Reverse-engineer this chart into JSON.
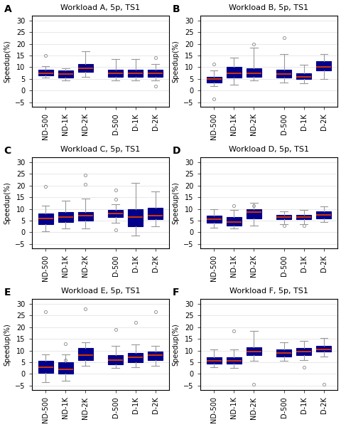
{
  "panels": [
    {
      "label": "A",
      "title": "Workload A, 5p, TS1",
      "boxes": [
        {
          "whislo": 5.5,
          "q1": 6.5,
          "med": 7.5,
          "q3": 9.0,
          "whishi": 10.5,
          "fliers": [
            15.0
          ]
        },
        {
          "whislo": 4.5,
          "q1": 5.5,
          "med": 7.0,
          "q3": 8.5,
          "whishi": 9.5,
          "fliers": []
        },
        {
          "whislo": 6.0,
          "q1": 8.0,
          "med": 9.5,
          "q3": 11.5,
          "whishi": 17.0,
          "fliers": []
        },
        {
          "whislo": 4.5,
          "q1": 6.0,
          "med": 7.5,
          "q3": 9.0,
          "whishi": 13.5,
          "fliers": []
        },
        {
          "whislo": 4.5,
          "q1": 6.0,
          "med": 7.5,
          "q3": 9.0,
          "whishi": 13.5,
          "fliers": []
        },
        {
          "whislo": 4.5,
          "q1": 6.0,
          "med": 7.5,
          "q3": 9.0,
          "whishi": 11.5,
          "fliers": [
            2.0,
            14.0
          ]
        }
      ]
    },
    {
      "label": "B",
      "title": "Workload B, 5p, TS1",
      "boxes": [
        {
          "whislo": 2.0,
          "q1": 3.5,
          "med": 5.0,
          "q3": 6.0,
          "whishi": 8.5,
          "fliers": [
            11.5,
            -3.5
          ]
        },
        {
          "whislo": 2.5,
          "q1": 5.5,
          "med": 7.5,
          "q3": 10.0,
          "whishi": 14.0,
          "fliers": []
        },
        {
          "whislo": 4.5,
          "q1": 6.0,
          "med": 7.5,
          "q3": 9.5,
          "whishi": 18.5,
          "fliers": [
            20.0
          ]
        },
        {
          "whislo": 3.5,
          "q1": 5.5,
          "med": 7.0,
          "q3": 9.0,
          "whishi": 15.5,
          "fliers": [
            22.5
          ]
        },
        {
          "whislo": 3.0,
          "q1": 5.0,
          "med": 6.0,
          "q3": 7.5,
          "whishi": 11.0,
          "fliers": []
        },
        {
          "whislo": 5.0,
          "q1": 8.5,
          "med": 10.0,
          "q3": 12.5,
          "whishi": 15.5,
          "fliers": []
        }
      ]
    },
    {
      "label": "C",
      "title": "Workload C, 5p, TS1",
      "boxes": [
        {
          "whislo": 0.5,
          "q1": 3.5,
          "med": 6.0,
          "q3": 8.0,
          "whishi": 11.5,
          "fliers": [
            19.5
          ]
        },
        {
          "whislo": 1.5,
          "q1": 4.5,
          "med": 6.5,
          "q3": 8.5,
          "whishi": 13.5,
          "fliers": []
        },
        {
          "whislo": 1.5,
          "q1": 5.0,
          "med": 7.0,
          "q3": 8.5,
          "whishi": 14.5,
          "fliers": [
            20.5,
            24.5
          ]
        },
        {
          "whislo": 4.0,
          "q1": 6.5,
          "med": 8.0,
          "q3": 9.5,
          "whishi": 12.0,
          "fliers": [
            14.0,
            18.0,
            1.0
          ]
        },
        {
          "whislo": -1.5,
          "q1": 2.5,
          "med": 6.5,
          "q3": 10.0,
          "whishi": 21.0,
          "fliers": []
        },
        {
          "whislo": 2.5,
          "q1": 5.5,
          "med": 7.0,
          "q3": 10.5,
          "whishi": 17.5,
          "fliers": []
        }
      ]
    },
    {
      "label": "D",
      "title": "Workload D, 5p, TS1",
      "boxes": [
        {
          "whislo": 2.0,
          "q1": 4.0,
          "med": 5.5,
          "q3": 7.0,
          "whishi": 10.0,
          "fliers": []
        },
        {
          "whislo": 1.5,
          "q1": 3.0,
          "med": 4.5,
          "q3": 6.5,
          "whishi": 9.5,
          "fliers": [
            11.5
          ]
        },
        {
          "whislo": 3.0,
          "q1": 6.0,
          "med": 8.5,
          "q3": 10.0,
          "whishi": 12.5,
          "fliers": [
            11.5
          ]
        },
        {
          "whislo": 3.5,
          "q1": 5.5,
          "med": 6.5,
          "q3": 7.5,
          "whishi": 9.0,
          "fliers": [
            3.0
          ]
        },
        {
          "whislo": 3.5,
          "q1": 5.5,
          "med": 6.5,
          "q3": 7.5,
          "whishi": 9.5,
          "fliers": [
            3.0
          ]
        },
        {
          "whislo": 4.5,
          "q1": 6.0,
          "med": 7.5,
          "q3": 9.0,
          "whishi": 11.0,
          "fliers": []
        }
      ]
    },
    {
      "label": "E",
      "title": "Workload E, 5p, TS1",
      "boxes": [
        {
          "whislo": -3.5,
          "q1": 0.5,
          "med": 3.0,
          "q3": 5.5,
          "whishi": 8.5,
          "fliers": [
            26.5
          ]
        },
        {
          "whislo": -3.0,
          "q1": 0.0,
          "med": 2.0,
          "q3": 5.0,
          "whishi": 8.5,
          "fliers": [
            6.0,
            13.0
          ]
        },
        {
          "whislo": 3.5,
          "q1": 6.0,
          "med": 8.0,
          "q3": 11.0,
          "whishi": 13.5,
          "fliers": [
            28.0
          ]
        },
        {
          "whislo": 2.5,
          "q1": 4.0,
          "med": 6.0,
          "q3": 8.0,
          "whishi": 12.0,
          "fliers": [
            19.0
          ]
        },
        {
          "whislo": 3.0,
          "q1": 5.0,
          "med": 7.0,
          "q3": 9.0,
          "whishi": 12.5,
          "fliers": [
            22.0
          ]
        },
        {
          "whislo": 3.5,
          "q1": 6.0,
          "med": 8.0,
          "q3": 9.5,
          "whishi": 12.0,
          "fliers": [
            26.5
          ]
        }
      ]
    },
    {
      "label": "F",
      "title": "Workload F, 5p, TS1",
      "boxes": [
        {
          "whislo": 3.0,
          "q1": 4.5,
          "med": 5.5,
          "q3": 7.0,
          "whishi": 10.5,
          "fliers": []
        },
        {
          "whislo": 2.5,
          "q1": 4.5,
          "med": 5.5,
          "q3": 7.0,
          "whishi": 10.5,
          "fliers": [
            18.5
          ]
        },
        {
          "whislo": 5.5,
          "q1": 8.0,
          "med": 9.5,
          "q3": 11.5,
          "whishi": 18.5,
          "fliers": [
            -4.5
          ]
        },
        {
          "whislo": 5.5,
          "q1": 7.5,
          "med": 9.0,
          "q3": 10.5,
          "whishi": 13.5,
          "fliers": []
        },
        {
          "whislo": 6.0,
          "q1": 8.0,
          "med": 9.5,
          "q3": 11.0,
          "whishi": 14.0,
          "fliers": [
            3.0
          ]
        },
        {
          "whislo": 7.5,
          "q1": 9.5,
          "med": 10.5,
          "q3": 12.0,
          "whishi": 15.5,
          "fliers": [
            -4.5
          ]
        }
      ]
    }
  ],
  "xticklabels": [
    "ND-500",
    "ND-1K",
    "ND-2K",
    "D-500",
    "D-1K",
    "D-2K"
  ],
  "ylabel": "Speedup(%)",
  "ylim": [
    -7,
    32
  ],
  "yticks": [
    -5,
    0,
    5,
    10,
    15,
    20,
    25,
    30
  ],
  "box_color": "#00008B",
  "median_color": "#CC3300",
  "whisker_color": "#999999",
  "flier_color": "#999999",
  "flier_marker": "o"
}
